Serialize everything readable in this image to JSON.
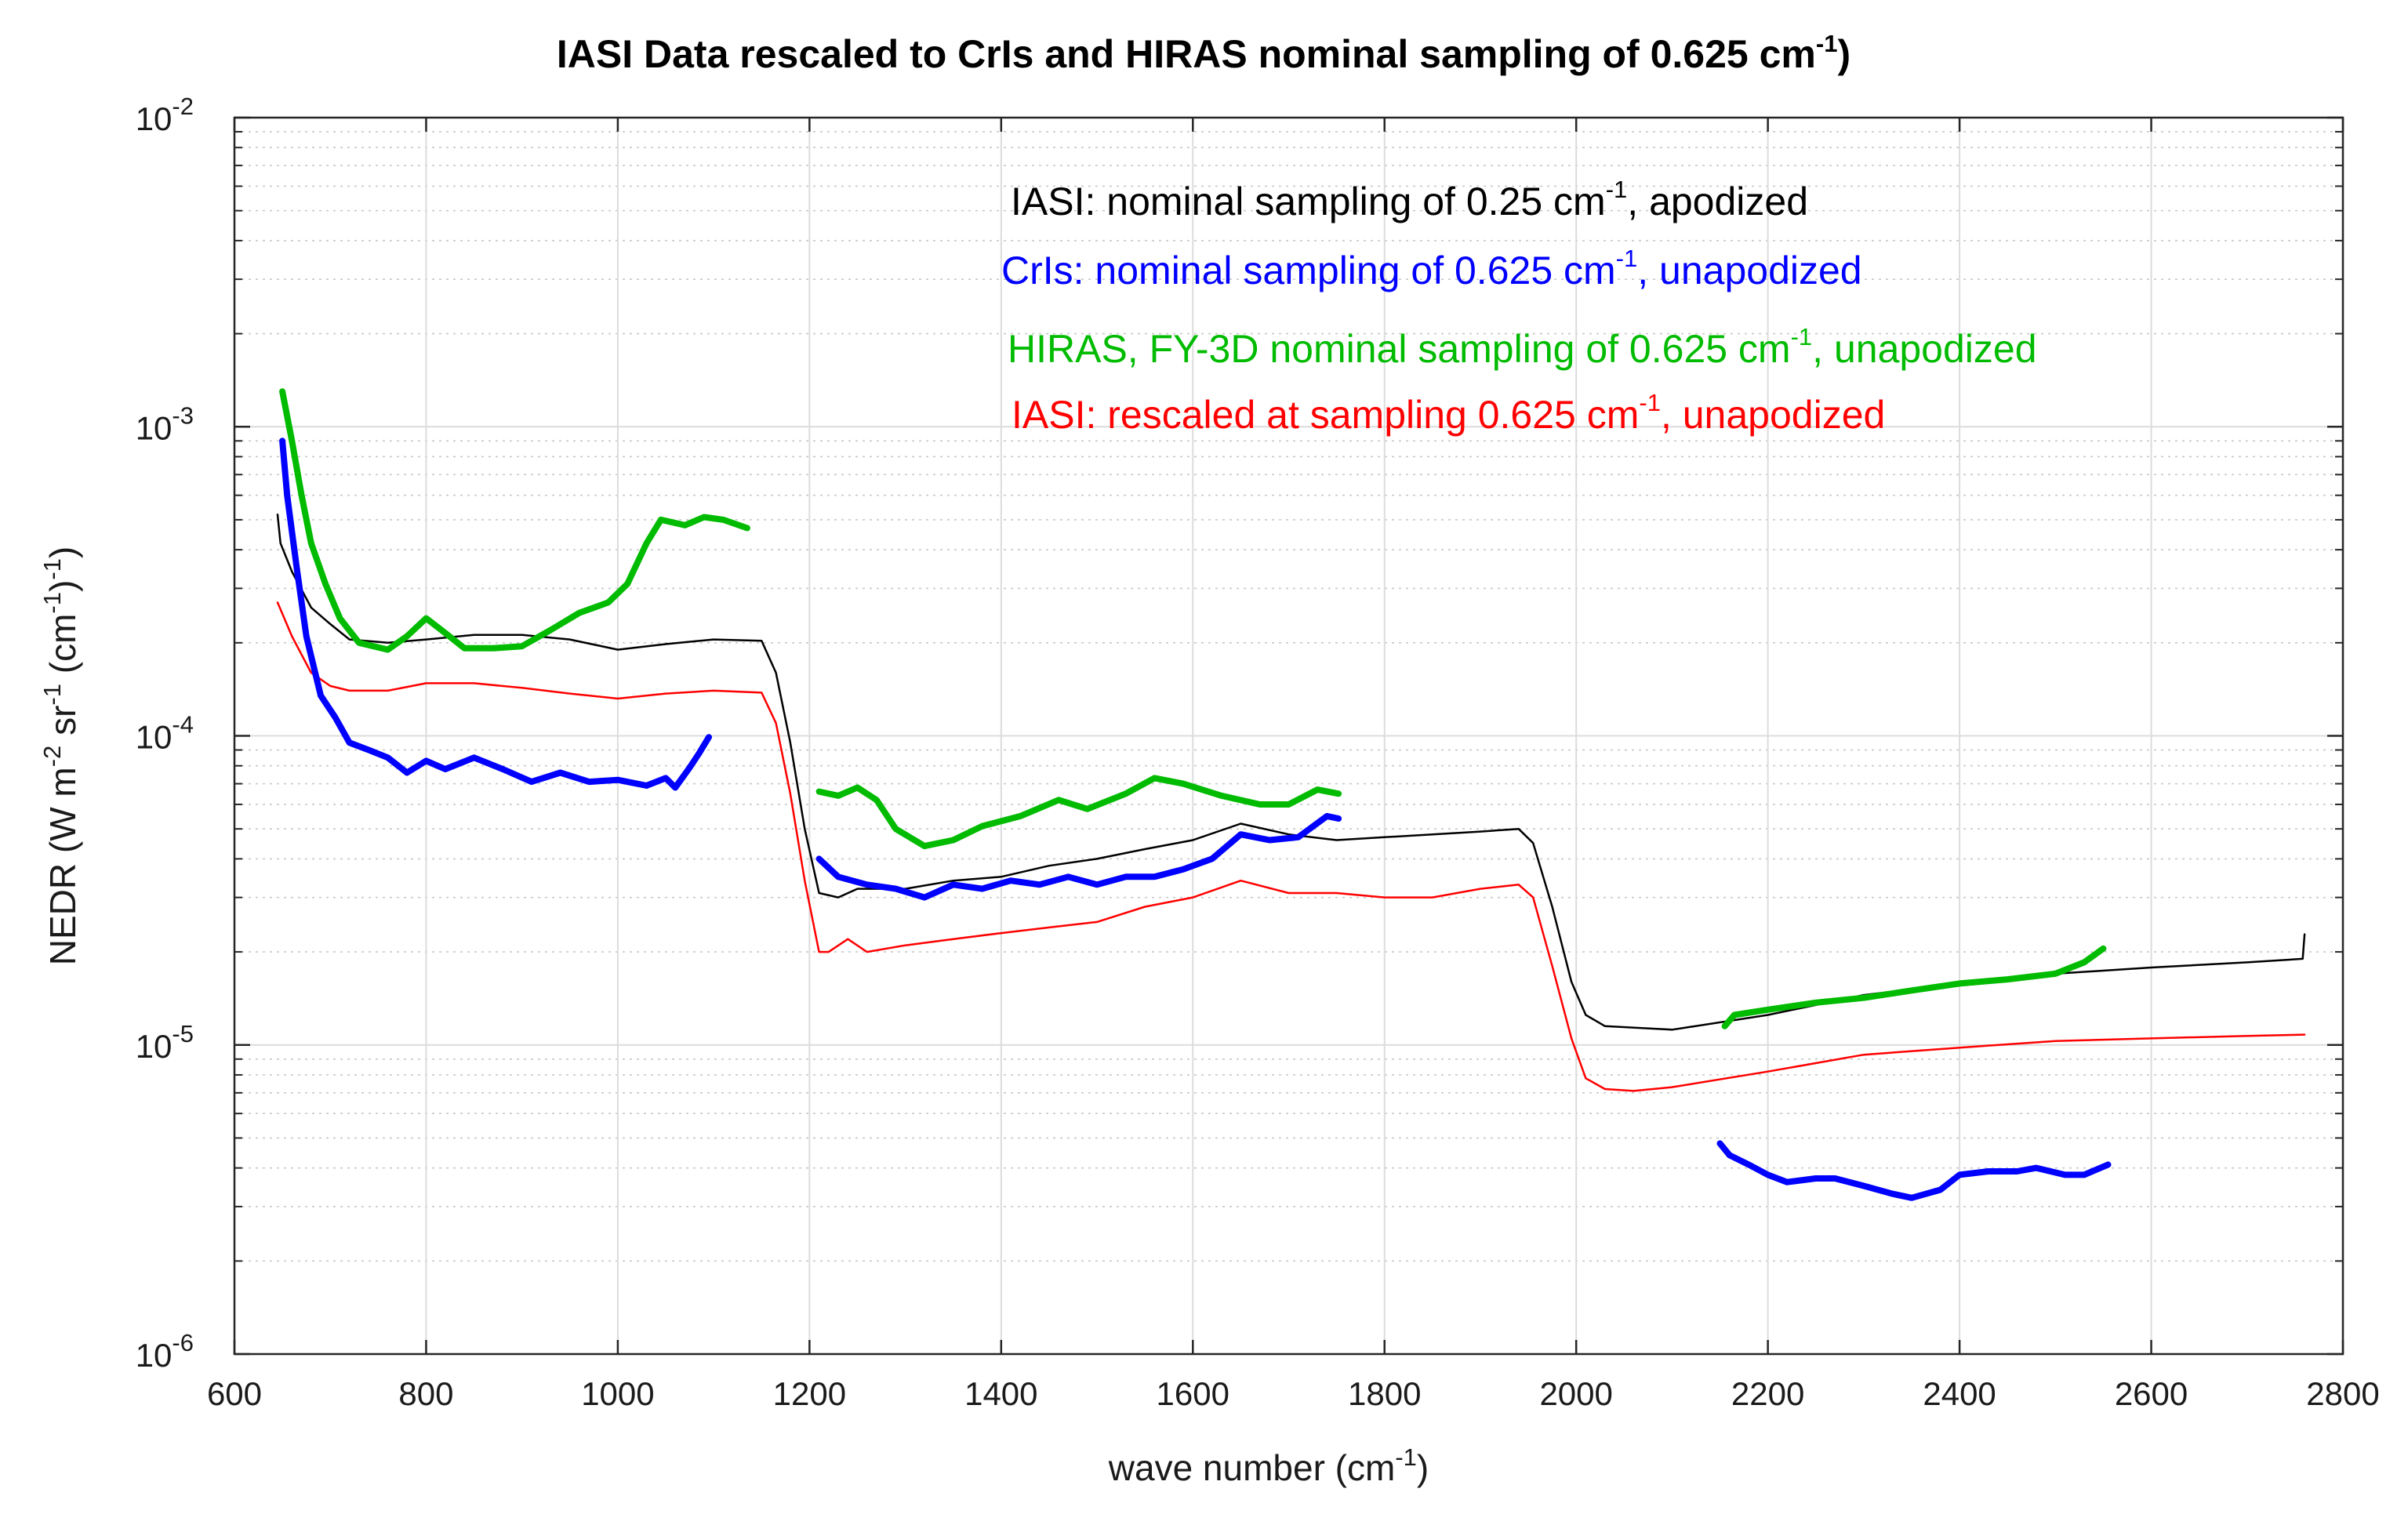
{
  "chart_data": {
    "type": "line",
    "title": {
      "main": "IASI Data rescaled to CrIs and HIRAS nominal sampling  of 0.625 cm",
      "exp": "-1",
      "tail": ")"
    },
    "xlabel": {
      "main": "wave number (cm",
      "exp": "-1",
      "tail": ")"
    },
    "ylabel": {
      "parts": [
        {
          "t": "NEDR (W m",
          "sup": false
        },
        {
          "t": "-2",
          "sup": true
        },
        {
          "t": " sr",
          "sup": false
        },
        {
          "t": "-1",
          "sup": true
        },
        {
          "t": " (cm",
          "sup": false
        },
        {
          "t": "-1",
          "sup": true
        },
        {
          "t": ")",
          "sup": false
        },
        {
          "t": "-1",
          "sup": true
        },
        {
          "t": ")",
          "sup": false
        }
      ]
    },
    "xlim": [
      600,
      2800
    ],
    "ylim": [
      1e-06,
      0.01
    ],
    "yscale": "log",
    "grid": true,
    "xticks": [
      600,
      800,
      1000,
      1200,
      1400,
      1600,
      1800,
      2000,
      2200,
      2400,
      2600,
      2800
    ],
    "yticks": [
      {
        "value": 1e-06,
        "base": "10",
        "exp": "-6"
      },
      {
        "value": 1e-05,
        "base": "10",
        "exp": "-5"
      },
      {
        "value": 0.0001,
        "base": "10",
        "exp": "-4"
      },
      {
        "value": 0.001,
        "base": "10",
        "exp": "-3"
      },
      {
        "value": 0.01,
        "base": "10",
        "exp": "-2"
      }
    ],
    "legend_placement": "top-right",
    "legend": [
      {
        "color": "#000000",
        "pre": "IASI: nominal sampling of 0.25 cm",
        "exp": "-1",
        "post": ", apodized"
      },
      {
        "color": "#0000ff",
        "pre": "CrIs: nominal sampling of 0.625 cm",
        "exp": "-1",
        "post": ", unapodized"
      },
      {
        "color": "#00bb00",
        "pre": "HIRAS, FY-3D nominal sampling of 0.625 cm",
        "exp": "-1",
        "post": ", unapodized"
      },
      {
        "color": "#ff0000",
        "pre": "IASI: rescaled at sampling 0.625 cm",
        "exp": "-1",
        "post": ",  unapodized"
      }
    ],
    "series": [
      {
        "color": "#000000",
        "width": 2.5,
        "segments": [
          [
            [
              645,
              0.00052
            ],
            [
              648,
              0.00042
            ],
            [
              660,
              0.00034
            ],
            [
              680,
              0.00026
            ],
            [
              700,
              0.00023
            ],
            [
              720,
              0.000205
            ],
            [
              760,
              0.0002
            ],
            [
              800,
              0.000205
            ],
            [
              850,
              0.000212
            ],
            [
              900,
              0.000212
            ],
            [
              950,
              0.000205
            ],
            [
              1000,
              0.00019
            ],
            [
              1050,
              0.000198
            ],
            [
              1100,
              0.000205
            ],
            [
              1150,
              0.000203
            ],
            [
              1165,
              0.00016
            ],
            [
              1180,
              9.5e-05
            ],
            [
              1195,
              5e-05
            ],
            [
              1210,
              3.1e-05
            ],
            [
              1230,
              3e-05
            ],
            [
              1250,
              3.2e-05
            ],
            [
              1300,
              3.2e-05
            ],
            [
              1350,
              3.4e-05
            ],
            [
              1400,
              3.5e-05
            ],
            [
              1450,
              3.8e-05
            ],
            [
              1500,
              4e-05
            ],
            [
              1550,
              4.3e-05
            ],
            [
              1600,
              4.6e-05
            ],
            [
              1650,
              5.2e-05
            ],
            [
              1700,
              4.8e-05
            ],
            [
              1750,
              4.6e-05
            ],
            [
              1800,
              4.7e-05
            ],
            [
              1850,
              4.8e-05
            ],
            [
              1900,
              4.9e-05
            ],
            [
              1940,
              5e-05
            ],
            [
              1955,
              4.5e-05
            ],
            [
              1975,
              2.8e-05
            ],
            [
              1995,
              1.6e-05
            ],
            [
              2010,
              1.25e-05
            ],
            [
              2030,
              1.15e-05
            ],
            [
              2100,
              1.12e-05
            ],
            [
              2200,
              1.25e-05
            ],
            [
              2300,
              1.45e-05
            ],
            [
              2400,
              1.58e-05
            ],
            [
              2500,
              1.7e-05
            ],
            [
              2600,
              1.78e-05
            ],
            [
              2700,
              1.85e-05
            ],
            [
              2758,
              1.9e-05
            ],
            [
              2760,
              2.28e-05
            ]
          ]
        ]
      },
      {
        "color": "#ff0000",
        "width": 2.5,
        "segments": [
          [
            [
              645,
              0.00027
            ],
            [
              660,
              0.00021
            ],
            [
              680,
              0.00016
            ],
            [
              700,
              0.000145
            ],
            [
              720,
              0.00014
            ],
            [
              760,
              0.00014
            ],
            [
              800,
              0.000148
            ],
            [
              850,
              0.000148
            ],
            [
              900,
              0.000143
            ],
            [
              950,
              0.000137
            ],
            [
              1000,
              0.000132
            ],
            [
              1050,
              0.000137
            ],
            [
              1100,
              0.00014
            ],
            [
              1150,
              0.000138
            ],
            [
              1165,
              0.00011
            ],
            [
              1180,
              6.5e-05
            ],
            [
              1195,
              3.4e-05
            ],
            [
              1210,
              2e-05
            ],
            [
              1220,
              2e-05
            ],
            [
              1240,
              2.2e-05
            ],
            [
              1260,
              2e-05
            ],
            [
              1300,
              2.1e-05
            ],
            [
              1350,
              2.2e-05
            ],
            [
              1400,
              2.3e-05
            ],
            [
              1450,
              2.4e-05
            ],
            [
              1500,
              2.5e-05
            ],
            [
              1550,
              2.8e-05
            ],
            [
              1600,
              3e-05
            ],
            [
              1650,
              3.4e-05
            ],
            [
              1700,
              3.1e-05
            ],
            [
              1750,
              3.1e-05
            ],
            [
              1800,
              3e-05
            ],
            [
              1850,
              3e-05
            ],
            [
              1900,
              3.2e-05
            ],
            [
              1940,
              3.3e-05
            ],
            [
              1955,
              3e-05
            ],
            [
              1975,
              1.8e-05
            ],
            [
              1995,
              1.05e-05
            ],
            [
              2010,
              7.8e-06
            ],
            [
              2030,
              7.2e-06
            ],
            [
              2060,
              7.1e-06
            ],
            [
              2100,
              7.3e-06
            ],
            [
              2200,
              8.2e-06
            ],
            [
              2300,
              9.3e-06
            ],
            [
              2400,
              9.8e-06
            ],
            [
              2500,
              1.03e-05
            ],
            [
              2600,
              1.05e-05
            ],
            [
              2700,
              1.07e-05
            ],
            [
              2760,
              1.08e-05
            ]
          ]
        ]
      },
      {
        "color": "#0000ff",
        "width": 8,
        "segments": [
          [
            [
              650,
              0.0009
            ],
            [
              655,
              0.0006
            ],
            [
              665,
              0.00035
            ],
            [
              675,
              0.00021
            ],
            [
              690,
              0.000135
            ],
            [
              705,
              0.000115
            ],
            [
              720,
              9.5e-05
            ],
            [
              740,
              9e-05
            ],
            [
              760,
              8.5e-05
            ],
            [
              780,
              7.6e-05
            ],
            [
              800,
              8.3e-05
            ],
            [
              820,
              7.8e-05
            ],
            [
              850,
              8.5e-05
            ],
            [
              880,
              7.8e-05
            ],
            [
              910,
              7.1e-05
            ],
            [
              940,
              7.6e-05
            ],
            [
              970,
              7.1e-05
            ],
            [
              1000,
              7.2e-05
            ],
            [
              1030,
              6.9e-05
            ],
            [
              1050,
              7.3e-05
            ],
            [
              1060,
              6.8e-05
            ],
            [
              1075,
              7.9e-05
            ],
            [
              1085,
              8.8e-05
            ],
            [
              1095,
              9.9e-05
            ]
          ],
          [
            [
              1210,
              4e-05
            ],
            [
              1230,
              3.5e-05
            ],
            [
              1260,
              3.3e-05
            ],
            [
              1290,
              3.2e-05
            ],
            [
              1320,
              3e-05
            ],
            [
              1350,
              3.3e-05
            ],
            [
              1380,
              3.2e-05
            ],
            [
              1410,
              3.4e-05
            ],
            [
              1440,
              3.3e-05
            ],
            [
              1470,
              3.5e-05
            ],
            [
              1500,
              3.3e-05
            ],
            [
              1530,
              3.5e-05
            ],
            [
              1560,
              3.5e-05
            ],
            [
              1590,
              3.7e-05
            ],
            [
              1620,
              4e-05
            ],
            [
              1650,
              4.8e-05
            ],
            [
              1680,
              4.6e-05
            ],
            [
              1710,
              4.7e-05
            ],
            [
              1740,
              5.5e-05
            ],
            [
              1752,
              5.4e-05
            ]
          ],
          [
            [
              2150,
              4.8e-06
            ],
            [
              2160,
              4.4e-06
            ],
            [
              2180,
              4.1e-06
            ],
            [
              2200,
              3.8e-06
            ],
            [
              2220,
              3.6e-06
            ],
            [
              2250,
              3.7e-06
            ],
            [
              2270,
              3.7e-06
            ],
            [
              2300,
              3.5e-06
            ],
            [
              2330,
              3.3e-06
            ],
            [
              2350,
              3.2e-06
            ],
            [
              2380,
              3.4e-06
            ],
            [
              2400,
              3.8e-06
            ],
            [
              2430,
              3.9e-06
            ],
            [
              2460,
              3.9e-06
            ],
            [
              2480,
              4e-06
            ],
            [
              2510,
              3.8e-06
            ],
            [
              2530,
              3.8e-06
            ],
            [
              2555,
              4.1e-06
            ]
          ]
        ]
      },
      {
        "color": "#00bb00",
        "width": 8,
        "segments": [
          [
            [
              650,
              0.0013
            ],
            [
              660,
              0.0009
            ],
            [
              670,
              0.0006
            ],
            [
              680,
              0.00042
            ],
            [
              695,
              0.00031
            ],
            [
              710,
              0.00024
            ],
            [
              730,
              0.0002
            ],
            [
              760,
              0.00019
            ],
            [
              780,
              0.00021
            ],
            [
              800,
              0.00024
            ],
            [
              820,
              0.000215
            ],
            [
              840,
              0.000192
            ],
            [
              870,
              0.000192
            ],
            [
              900,
              0.000195
            ],
            [
              930,
              0.00022
            ],
            [
              960,
              0.00025
            ],
            [
              990,
              0.00027
            ],
            [
              1010,
              0.00031
            ],
            [
              1030,
              0.00042
            ],
            [
              1045,
              0.0005
            ],
            [
              1070,
              0.00048
            ],
            [
              1090,
              0.00051
            ],
            [
              1110,
              0.0005
            ],
            [
              1135,
              0.00047
            ]
          ],
          [
            [
              1210,
              6.6e-05
            ],
            [
              1230,
              6.4e-05
            ],
            [
              1250,
              6.8e-05
            ],
            [
              1270,
              6.2e-05
            ],
            [
              1290,
              5e-05
            ],
            [
              1320,
              4.4e-05
            ],
            [
              1350,
              4.6e-05
            ],
            [
              1380,
              5.1e-05
            ],
            [
              1420,
              5.5e-05
            ],
            [
              1460,
              6.2e-05
            ],
            [
              1490,
              5.8e-05
            ],
            [
              1530,
              6.5e-05
            ],
            [
              1560,
              7.3e-05
            ],
            [
              1590,
              7e-05
            ],
            [
              1630,
              6.4e-05
            ],
            [
              1670,
              6e-05
            ],
            [
              1700,
              6e-05
            ],
            [
              1730,
              6.7e-05
            ],
            [
              1752,
              6.5e-05
            ]
          ],
          [
            [
              2155,
              1.15e-05
            ],
            [
              2165,
              1.25e-05
            ],
            [
              2200,
              1.3e-05
            ],
            [
              2250,
              1.37e-05
            ],
            [
              2300,
              1.42e-05
            ],
            [
              2350,
              1.5e-05
            ],
            [
              2400,
              1.58e-05
            ],
            [
              2450,
              1.63e-05
            ],
            [
              2500,
              1.7e-05
            ],
            [
              2530,
              1.85e-05
            ],
            [
              2550,
              2.05e-05
            ]
          ]
        ]
      }
    ]
  }
}
